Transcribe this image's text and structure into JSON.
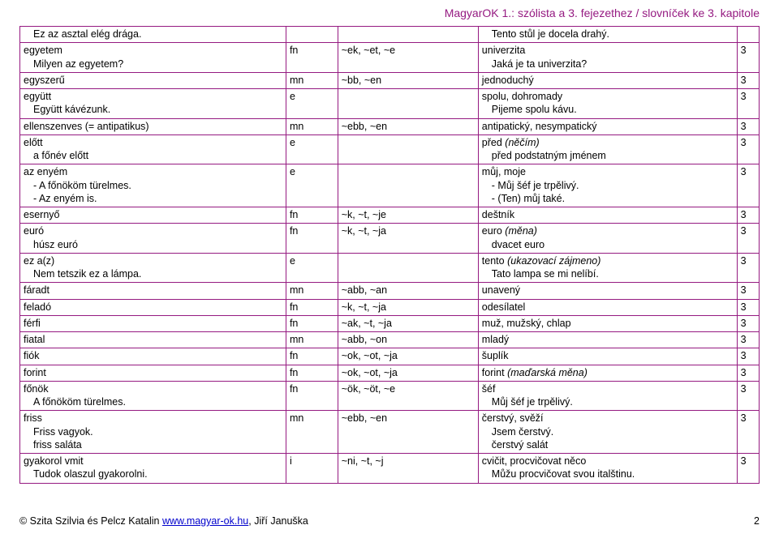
{
  "header": {
    "title": "MagyarOK 1.: szólista a 3. fejezethez / slovníček ke 3. kapitole"
  },
  "footer": {
    "copyright": "© Szita Szilvia és Pelcz Katalin ",
    "url": "www.magyar-ok.hu",
    "suffix": ", Jiří Januška",
    "page": "2"
  },
  "table": {
    "border_color": "#951a81",
    "header_color": "#951a81",
    "col_widths": [
      "36%",
      "7%",
      "19%",
      "35%",
      "3%"
    ],
    "rows": [
      {
        "hu_lines": [
          {
            "t": "Ez az asztal elég drága.",
            "indent": 1
          }
        ],
        "pos": "",
        "forms": "",
        "cz_lines": [
          {
            "t": "Tento stůl je docela drahý.",
            "indent": 1
          }
        ],
        "ch": ""
      },
      {
        "hu_lines": [
          {
            "t": "egyetem"
          },
          {
            "t": "Milyen az egyetem?",
            "indent": 1
          }
        ],
        "pos": "fn",
        "forms": "~ek, ~et, ~e",
        "cz_lines": [
          {
            "t": "univerzita"
          },
          {
            "t": "Jaká je ta univerzita?",
            "indent": 1
          }
        ],
        "ch": "3"
      },
      {
        "hu_lines": [
          {
            "t": "egyszerű"
          }
        ],
        "pos": "mn",
        "forms": "~bb, ~en",
        "cz_lines": [
          {
            "t": "jednoduchý"
          }
        ],
        "ch": "3"
      },
      {
        "hu_lines": [
          {
            "t": "együtt"
          },
          {
            "t": "Együtt kávézunk.",
            "indent": 1
          }
        ],
        "pos": "e",
        "forms": "",
        "cz_lines": [
          {
            "t": "spolu, dohromady"
          },
          {
            "t": "Pijeme spolu kávu.",
            "indent": 1
          }
        ],
        "ch": "3"
      },
      {
        "hu_lines": [
          {
            "t": "ellenszenves (= antipatikus)"
          }
        ],
        "pos": "mn",
        "forms": "~ebb, ~en",
        "cz_lines": [
          {
            "t": "antipatický, nesympatický"
          }
        ],
        "ch": "3"
      },
      {
        "hu_lines": [
          {
            "t": "előtt"
          },
          {
            "t": "a főnév előtt",
            "indent": 1
          }
        ],
        "pos": "e",
        "forms": "",
        "cz_lines": [
          {
            "t": "před ",
            "ital_t": "(něčím)"
          },
          {
            "t": "před podstatným jménem",
            "indent": 1
          }
        ],
        "ch": "3"
      },
      {
        "hu_lines": [
          {
            "t": "az enyém"
          },
          {
            "t": "- A főnököm türelmes.",
            "indent": 1
          },
          {
            "t": "- Az enyém is.",
            "indent": 1
          }
        ],
        "pos": "e",
        "forms": "",
        "cz_lines": [
          {
            "t": "můj, moje"
          },
          {
            "t": "- Můj šéf je trpělivý.",
            "indent": 1
          },
          {
            "t": "- (Ten) můj také.",
            "indent": 1
          }
        ],
        "ch": "3"
      },
      {
        "hu_lines": [
          {
            "t": "esernyő"
          }
        ],
        "pos": "fn",
        "forms": "~k, ~t, ~je",
        "cz_lines": [
          {
            "t": "deštník"
          }
        ],
        "ch": "3"
      },
      {
        "hu_lines": [
          {
            "t": "euró"
          },
          {
            "t": "húsz euró",
            "indent": 1
          }
        ],
        "pos": "fn",
        "forms": "~k, ~t, ~ja",
        "cz_lines": [
          {
            "t": "euro ",
            "ital_t": "(měna)"
          },
          {
            "t": "dvacet euro",
            "indent": 1
          }
        ],
        "ch": "3"
      },
      {
        "hu_lines": [
          {
            "t": "ez a(z)"
          },
          {
            "t": "Nem tetszik ez a lámpa.",
            "indent": 1
          }
        ],
        "pos": "e",
        "forms": "",
        "cz_lines": [
          {
            "t": "tento ",
            "ital_t": "(ukazovací zájmeno)"
          },
          {
            "t": "Tato lampa se mi nelíbí.",
            "indent": 1
          }
        ],
        "ch": "3"
      },
      {
        "hu_lines": [
          {
            "t": "fáradt"
          }
        ],
        "pos": "mn",
        "forms": "~abb, ~an",
        "cz_lines": [
          {
            "t": "unavený"
          }
        ],
        "ch": "3"
      },
      {
        "hu_lines": [
          {
            "t": "feladó"
          }
        ],
        "pos": "fn",
        "forms": "~k, ~t, ~ja",
        "cz_lines": [
          {
            "t": "odesílatel"
          }
        ],
        "ch": "3"
      },
      {
        "hu_lines": [
          {
            "t": "férfi"
          }
        ],
        "pos": "fn",
        "forms": "~ak, ~t, ~ja",
        "cz_lines": [
          {
            "t": "muž, mužský, chlap"
          }
        ],
        "ch": "3"
      },
      {
        "hu_lines": [
          {
            "t": "fiatal"
          }
        ],
        "pos": "mn",
        "forms": "~abb, ~on",
        "cz_lines": [
          {
            "t": "mladý"
          }
        ],
        "ch": "3"
      },
      {
        "hu_lines": [
          {
            "t": "fiók"
          }
        ],
        "pos": "fn",
        "forms": "~ok, ~ot, ~ja",
        "cz_lines": [
          {
            "t": "šuplík"
          }
        ],
        "ch": "3"
      },
      {
        "hu_lines": [
          {
            "t": "forint"
          }
        ],
        "pos": "fn",
        "forms": "~ok, ~ot, ~ja",
        "cz_lines": [
          {
            "t": "forint ",
            "ital_t": "(maďarská měna)"
          }
        ],
        "ch": "3"
      },
      {
        "hu_lines": [
          {
            "t": "főnök"
          },
          {
            "t": "A főnököm türelmes.",
            "indent": 1
          }
        ],
        "pos": "fn",
        "forms": "~ök, ~öt, ~e",
        "cz_lines": [
          {
            "t": "šéf"
          },
          {
            "t": "Můj šéf je trpělivý.",
            "indent": 1
          }
        ],
        "ch": "3"
      },
      {
        "hu_lines": [
          {
            "t": "friss"
          },
          {
            "t": "Friss vagyok.",
            "indent": 1
          },
          {
            "t": "friss saláta",
            "indent": 1
          }
        ],
        "pos": "mn",
        "forms": "~ebb, ~en",
        "cz_lines": [
          {
            "t": "čerstvý, svěží"
          },
          {
            "t": "Jsem čerstvý.",
            "indent": 1
          },
          {
            "t": "čerstvý salát",
            "indent": 1
          }
        ],
        "ch": "3"
      },
      {
        "hu_lines": [
          {
            "t": "gyakorol vmit"
          },
          {
            "t": "Tudok olaszul gyakorolni.",
            "indent": 1
          }
        ],
        "pos": "i",
        "forms": "~ni, ~t, ~j",
        "cz_lines": [
          {
            "t": "cvičit, procvičovat něco"
          },
          {
            "t": "Můžu procvičovat svou italštinu.",
            "indent": 1
          }
        ],
        "ch": "3"
      }
    ]
  }
}
